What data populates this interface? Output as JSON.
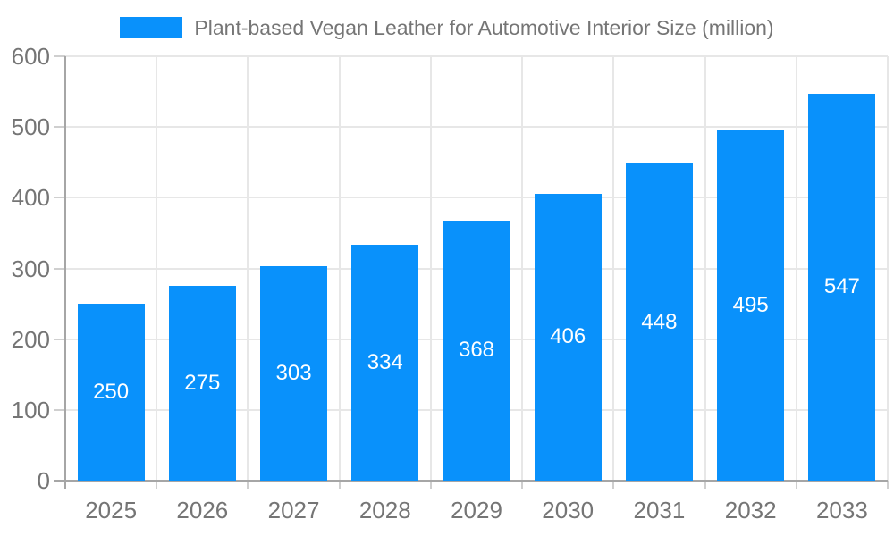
{
  "chart_data": {
    "type": "bar",
    "title": "Plant-based Vegan Leather for Automotive Interior Size (million)",
    "categories": [
      "2025",
      "2026",
      "2027",
      "2028",
      "2029",
      "2030",
      "2031",
      "2032",
      "2033"
    ],
    "values": [
      250,
      275,
      303,
      334,
      368,
      406,
      448,
      495,
      547
    ],
    "bar_value_labels": [
      "250",
      "275",
      "303",
      "334",
      "368",
      "406",
      "448",
      "495",
      "547"
    ],
    "xlabel": "",
    "ylabel": "",
    "ylim": [
      0,
      600
    ],
    "yticks": [
      0,
      100,
      200,
      300,
      400,
      500,
      600
    ],
    "ytick_labels": [
      "0",
      "100",
      "200",
      "300",
      "400",
      "500",
      "600"
    ],
    "grid": true,
    "legend_position": "top-center",
    "colors": {
      "bar": "#0991fb",
      "bar_label_text": "#ffffff",
      "grid_line": "#e7e7e7",
      "tick_mark": "#cfcfcf",
      "axis_line": "#a6a6a6",
      "tick_text": "#757575",
      "title_text": "#757575",
      "background": "#ffffff"
    }
  }
}
